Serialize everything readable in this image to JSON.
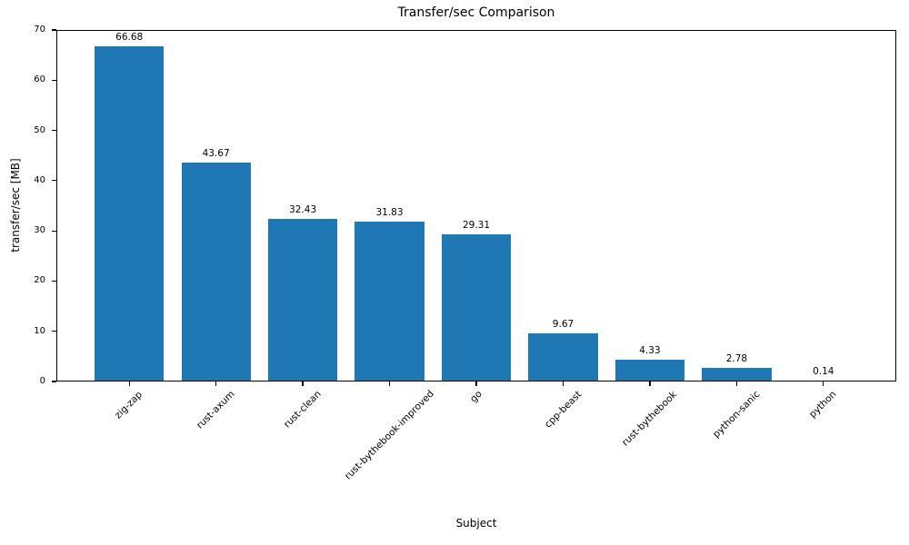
{
  "chart_data": {
    "type": "bar",
    "title": "Transfer/sec Comparison",
    "xlabel": "Subject",
    "ylabel": "transfer/sec [MB]",
    "categories": [
      "zig-zap",
      "rust-axum",
      "rust-clean",
      "rust-bythebook-improved",
      "go",
      "cpp-beast",
      "rust-bythebook",
      "python-sanic",
      "python"
    ],
    "values": [
      66.68,
      43.67,
      32.43,
      31.83,
      29.31,
      9.67,
      4.33,
      2.78,
      0.14
    ],
    "value_labels": [
      "66.68",
      "43.67",
      "32.43",
      "31.83",
      "29.31",
      "9.67",
      "4.33",
      "2.78",
      "0.14"
    ],
    "ylim": [
      0,
      70
    ],
    "yticks": [
      0,
      10,
      20,
      30,
      40,
      50,
      60,
      70
    ],
    "bar_color": "#1f77b4",
    "axis_color": "#000000",
    "grid": false,
    "legend": false,
    "xtick_rotation_deg": 45
  }
}
